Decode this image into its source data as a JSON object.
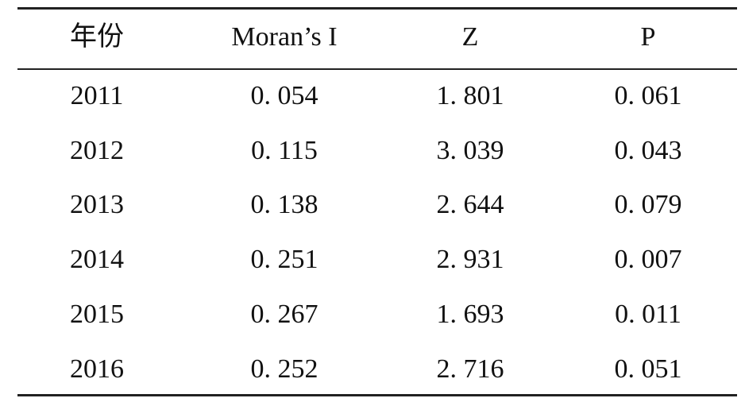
{
  "table": {
    "header": [
      "年份",
      "Moran’s I",
      "Z",
      "P"
    ],
    "rows": [
      [
        "2011",
        "0. 054",
        "1. 801",
        "0. 061"
      ],
      [
        "2012",
        "0. 115",
        "3. 039",
        "0. 043"
      ],
      [
        "2013",
        "0. 138",
        "2. 644",
        "0. 079"
      ],
      [
        "2014",
        "0. 251",
        "2. 931",
        "0. 007"
      ],
      [
        "2015",
        "0. 267",
        "1. 693",
        "0. 011"
      ],
      [
        "2016",
        "0. 252",
        "2. 716",
        "0. 051"
      ]
    ]
  }
}
